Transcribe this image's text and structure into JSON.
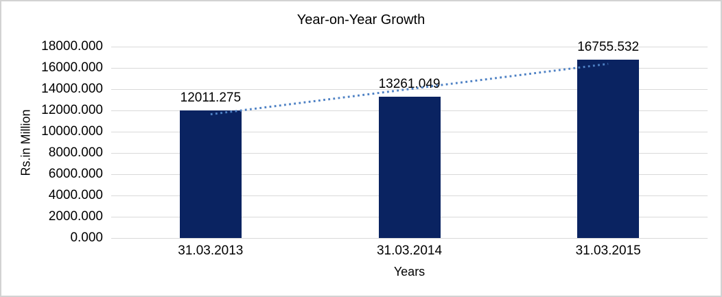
{
  "chart_data": {
    "type": "bar",
    "title": "Year-on-Year Growth",
    "categories": [
      "31.03.2013",
      "31.03.2014",
      "31.03.2015"
    ],
    "values": [
      12011.275,
      13261.049,
      16755.532
    ],
    "data_labels": [
      "12011.275",
      "13261.049",
      "16755.532"
    ],
    "xlabel": "Years",
    "ylabel": "Rs.in Million",
    "ylim": [
      0,
      18000
    ],
    "ytick_step": 2000,
    "ytick_labels": [
      "0.000",
      "2000.000",
      "4000.000",
      "6000.000",
      "8000.000",
      "10000.000",
      "12000.000",
      "14000.000",
      "16000.000",
      "18000.000"
    ],
    "grid": true,
    "legend": "none",
    "trendline": {
      "type": "linear",
      "style": "dotted"
    },
    "colors": {
      "bar": "#0a2361",
      "trendline": "#4e81c4",
      "gridline": "#d9d9d9",
      "text": "#000000",
      "background": "#ffffff",
      "border": "#d2d2d2"
    }
  }
}
